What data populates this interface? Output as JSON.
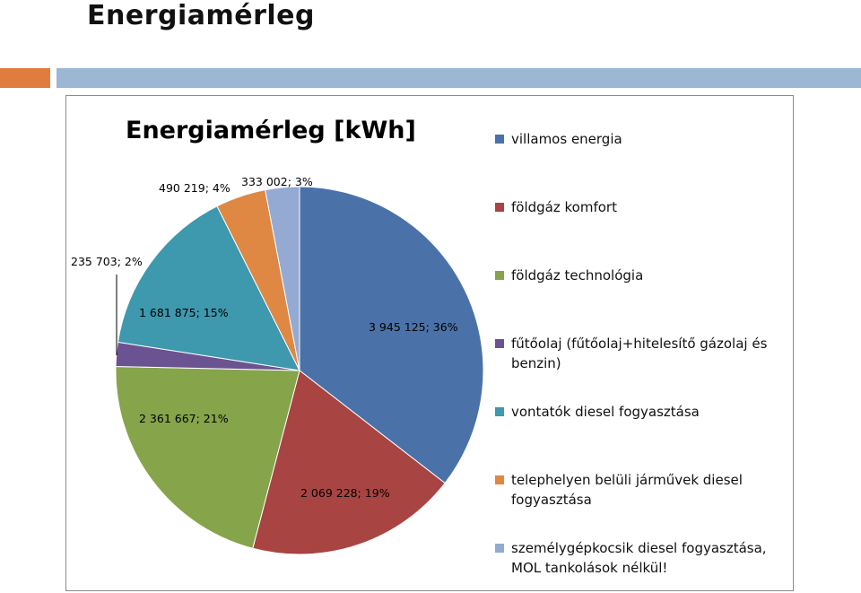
{
  "slide": {
    "title": "Energiamérleg"
  },
  "colors": {
    "accent_orange": "#E07C3E",
    "accent_blue": "#9BB7D4"
  },
  "chart_data": {
    "type": "pie",
    "title": "Energiamérleg [kWh]",
    "legend_position": "right",
    "series": [
      {
        "name": "",
        "slices": [
          {
            "label": "villamos energia",
            "value": 3945125,
            "data_label": "3 945 125; 36%",
            "color": "#4A72A8"
          },
          {
            "label": "földgáz komfort",
            "value": 2069228,
            "data_label": "2 069 228; 19%",
            "color": "#A84442"
          },
          {
            "label": "földgáz technológia",
            "value": 2361667,
            "data_label": "2 361 667; 21%",
            "color": "#86A44A"
          },
          {
            "label": "fűtőolaj (fűtőolaj+hitelesítő gázolaj és benzin)",
            "value": 235703,
            "data_label": "235 703; 2%",
            "color": "#6B5391"
          },
          {
            "label": "vontatók diesel fogyasztása",
            "value": 1681875,
            "data_label": "1 681 875; 15%",
            "color": "#3E98AE"
          },
          {
            "label": "telephelyen belüli járművek diesel fogyasztása",
            "value": 490219,
            "data_label": "490 219; 4%",
            "color": "#DE8844"
          },
          {
            "label": "személygépkocsik diesel fogyasztása, MOL tankolások nélkül!",
            "value": 333002,
            "data_label": "333 002; 3%",
            "color": "#94AAD3"
          }
        ]
      }
    ]
  }
}
